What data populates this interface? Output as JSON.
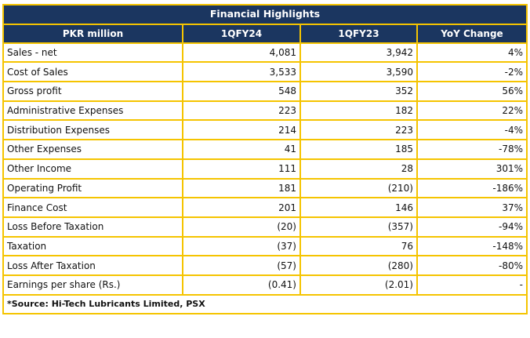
{
  "title": "Financial Highlights",
  "headers": [
    "PKR million",
    "1QFY24",
    "1QFY23",
    "YoY Change"
  ],
  "rows": [
    {
      "label": "Sales - net",
      "fy24": "4,081",
      "fy23": "3,942",
      "yoy": "4%"
    },
    {
      "label": "Cost of Sales",
      "fy24": "3,533",
      "fy23": "3,590",
      "yoy": "-2%"
    },
    {
      "label": "Gross profit",
      "fy24": "548",
      "fy23": "352",
      "yoy": "56%"
    },
    {
      "label": "Administrative Expenses",
      "fy24": "223",
      "fy23": "182",
      "yoy": "22%"
    },
    {
      "label": "Distribution Expenses",
      "fy24": "214",
      "fy23": "223",
      "yoy": "-4%"
    },
    {
      "label": "Other Expenses",
      "fy24": "41",
      "fy23": "185",
      "yoy": "-78%"
    },
    {
      "label": "Other Income",
      "fy24": "111",
      "fy23": "28",
      "yoy": "301%"
    },
    {
      "label": "Operating Profit",
      "fy24": "181",
      "fy23": "(210)",
      "yoy": "-186%"
    },
    {
      "label": "Finance Cost",
      "fy24": "201",
      "fy23": "146",
      "yoy": "37%"
    },
    {
      "label": "Loss Before Taxation",
      "fy24": "(20)",
      "fy23": "(357)",
      "yoy": "-94%"
    },
    {
      "label": "Taxation",
      "fy24": "(37)",
      "fy23": "76",
      "yoy": "-148%"
    },
    {
      "label": "Loss After Taxation",
      "fy24": "(57)",
      "fy23": "(280)",
      "yoy": "-80%"
    },
    {
      "label": "Earnings per share (Rs.)",
      "fy24": "(0.41)",
      "fy23": "(2.01)",
      "yoy": "-"
    }
  ],
  "source": "*Source: Hi-Tech Lubricants Limited, PSX",
  "colors": {
    "header_bg": "#1b3660",
    "border": "#f5c400"
  }
}
